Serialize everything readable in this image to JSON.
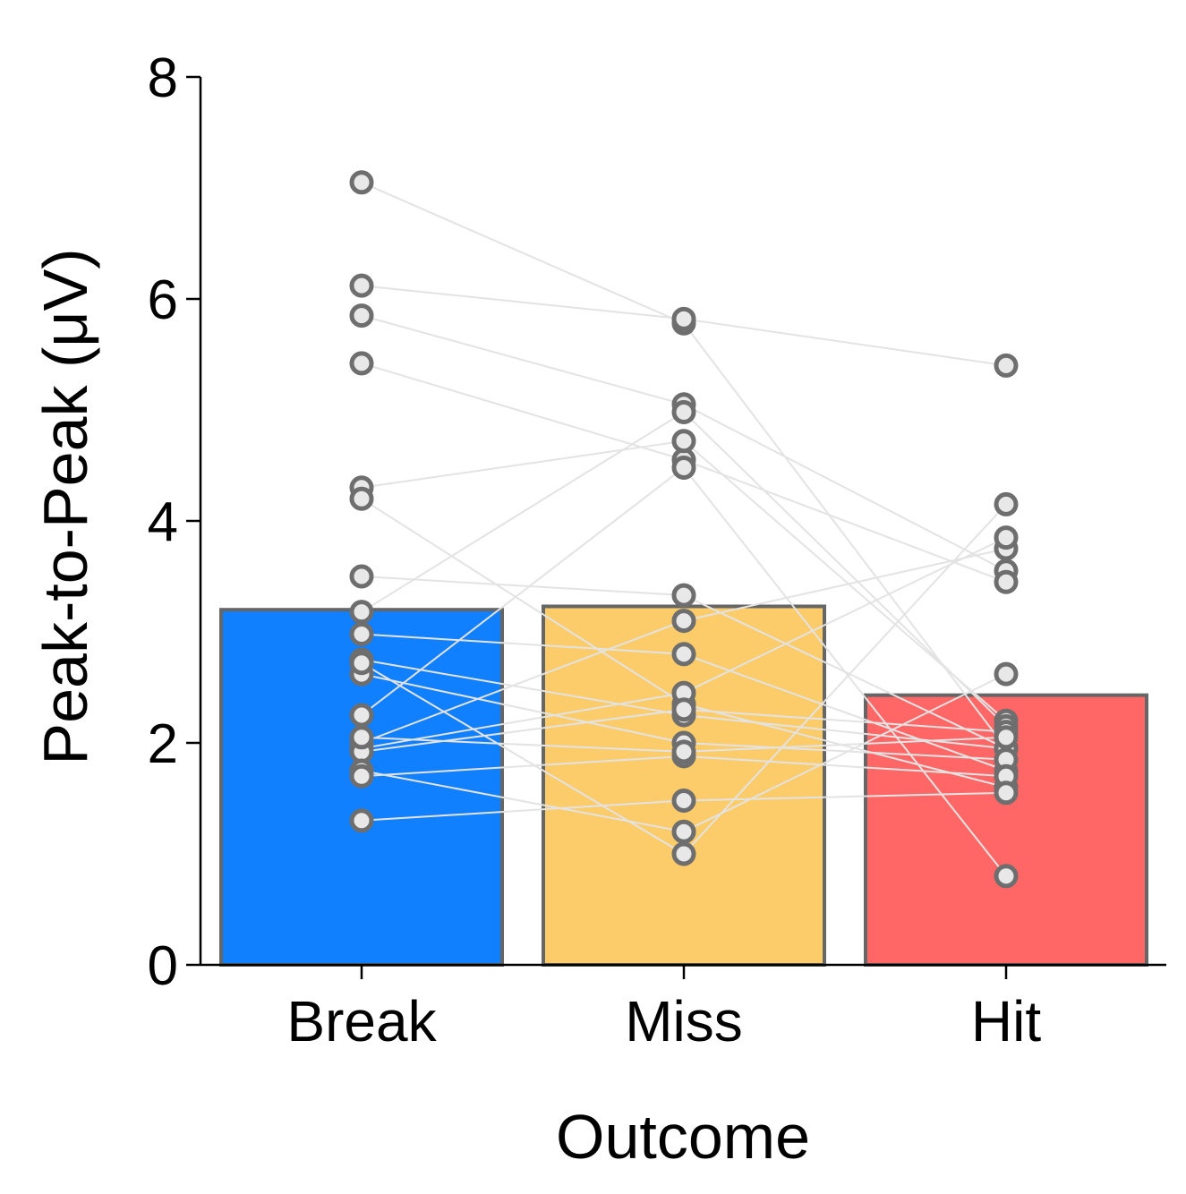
{
  "chart_data": {
    "type": "bar",
    "title": "",
    "xlabel": "Outcome",
    "ylabel": "Peak-to-Peak (μV)",
    "ylim": [
      0,
      8
    ],
    "yticks": [
      0,
      2,
      4,
      6,
      8
    ],
    "grid": false,
    "legend": "none",
    "categories": [
      "Break",
      "Miss",
      "Hit"
    ],
    "values": [
      3.2,
      3.23,
      2.43
    ],
    "bar_colors": [
      "#1080ff",
      "#fccb6a",
      "#ff6666"
    ],
    "bar_edge_color": "#666666",
    "point_edge_color": "#6e6e6e",
    "point_fill_color": "#e8e8e8",
    "line_color": "#e3e3e3",
    "subjects": [
      [
        7.05,
        5.78,
        1.95
      ],
      [
        6.12,
        5.82,
        5.4
      ],
      [
        5.85,
        5.05,
        3.55
      ],
      [
        5.42,
        4.55,
        3.45
      ],
      [
        4.3,
        4.72,
        2.2
      ],
      [
        4.2,
        2.35,
        1.6
      ],
      [
        3.5,
        3.33,
        1.95
      ],
      [
        3.18,
        4.98,
        2.15
      ],
      [
        2.98,
        2.8,
        1.75
      ],
      [
        2.75,
        2.25,
        1.95
      ],
      [
        2.62,
        2.0,
        1.85
      ],
      [
        2.25,
        4.48,
        0.8
      ],
      [
        2.0,
        3.1,
        3.75
      ],
      [
        1.95,
        2.45,
        3.85
      ],
      [
        1.92,
        2.3,
        2.1
      ],
      [
        1.75,
        1.2,
        2.62
      ],
      [
        1.7,
        1.88,
        1.7
      ],
      [
        1.3,
        1.48,
        1.55
      ],
      [
        2.72,
        1.0,
        4.15
      ],
      [
        2.05,
        1.92,
        2.05
      ]
    ]
  }
}
